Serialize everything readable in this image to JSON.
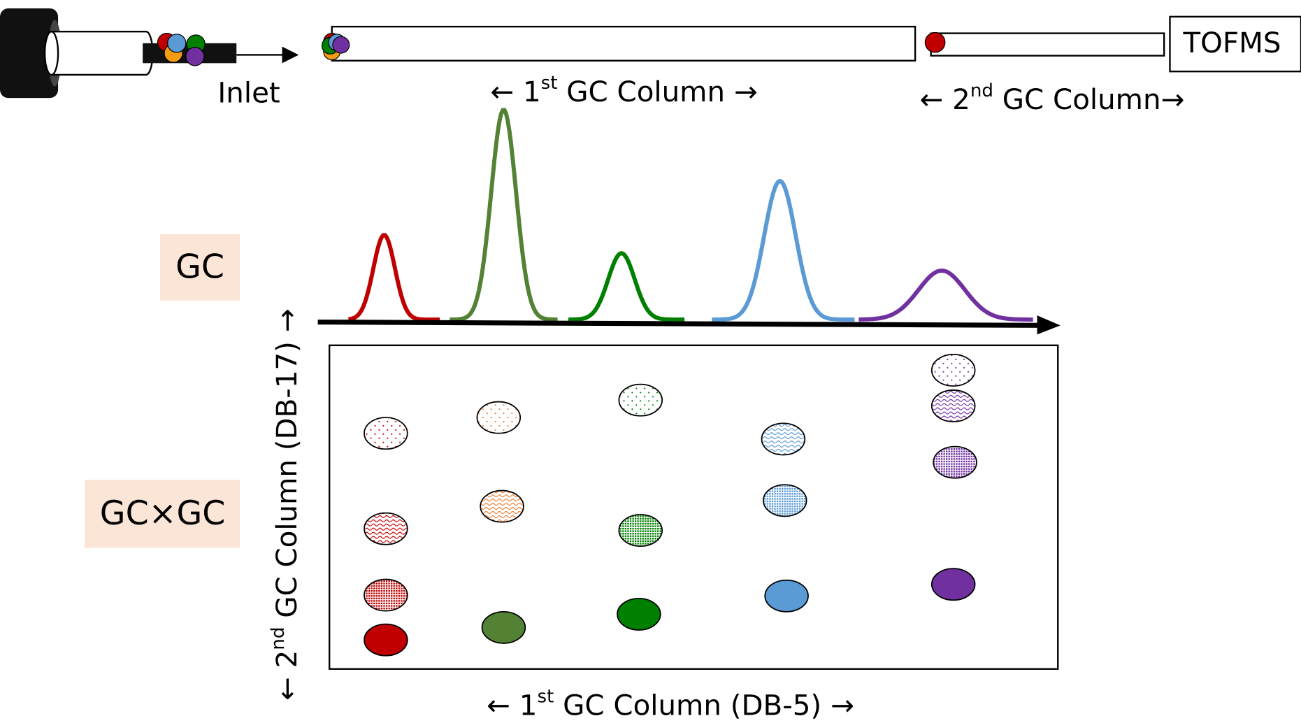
{
  "inlet_label": "Inlet",
  "first_column_label": {
    "before": "← 1",
    "sup": "st",
    "after": " GC Column →"
  },
  "second_column_label": {
    "before": "← 2",
    "sup": "nd",
    "after": " GC Column→"
  },
  "detector_label": "TOFMS",
  "gc_label": "GC",
  "gcxgc_label": "GC×GC",
  "y_axis_label": {
    "before": "← 2",
    "sup": "nd",
    "after": " GC Column (DB-17) →"
  },
  "x_axis_label": {
    "before": "← 1",
    "sup": "st",
    "after": " GC Column (DB-5) →"
  }
}
